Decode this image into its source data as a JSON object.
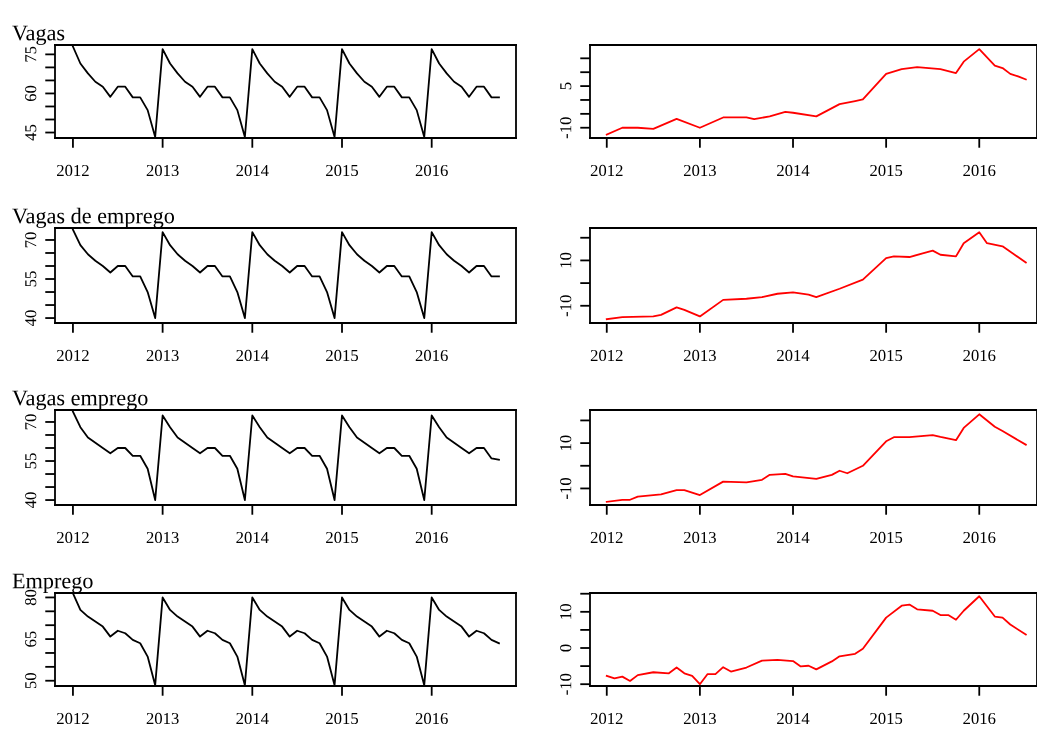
{
  "chart_data": [
    {
      "type": "line",
      "title": "Vagas",
      "xlim": [
        2011.8,
        2016.94
      ],
      "ylim": [
        42.9,
        78.6
      ],
      "xticks": [
        2012,
        2013,
        2014,
        2015,
        2016
      ],
      "yticks": [
        45,
        {
          "value": 50,
          "label": null
        },
        {
          "value": 55,
          "label": null
        },
        60,
        {
          "value": 65,
          "label": null
        },
        {
          "value": 70,
          "label": null
        },
        75
      ],
      "x": [
        2012,
        2012.083,
        2012.167,
        2012.25,
        2012.333,
        2012.417,
        2012.5,
        2012.583,
        2012.667,
        2012.75,
        2012.833,
        2012.917,
        2013,
        2013.083,
        2013.167,
        2013.25,
        2013.333,
        2013.417,
        2013.5,
        2013.583,
        2013.667,
        2013.75,
        2013.833,
        2013.917,
        2014,
        2014.083,
        2014.167,
        2014.25,
        2014.333,
        2014.417,
        2014.5,
        2014.583,
        2014.667,
        2014.75,
        2014.833,
        2014.917,
        2015,
        2015.083,
        2015.167,
        2015.25,
        2015.333,
        2015.417,
        2015.5,
        2015.583,
        2015.667,
        2015.75,
        2015.833,
        2015.917,
        2016,
        2016.083,
        2016.167,
        2016.25,
        2016.333,
        2016.417,
        2016.5,
        2016.583,
        2016.667,
        2016.75
      ],
      "series": [
        {
          "color": "#000000",
          "values": [
            78,
            71.5,
            67.7,
            64.5,
            62.6,
            58.7,
            62.6,
            62.6,
            58.5,
            58.5,
            53.6,
            43.3,
            77,
            71.5,
            67.7,
            64.5,
            62.6,
            58.7,
            62.6,
            62.6,
            58.5,
            58.5,
            53.6,
            43.3,
            77,
            71.5,
            67.7,
            64.5,
            62.6,
            58.7,
            62.6,
            62.6,
            58.5,
            58.5,
            53.6,
            43.3,
            77,
            71.5,
            67.7,
            64.5,
            62.6,
            58.7,
            62.6,
            62.6,
            58.5,
            58.5,
            53.6,
            43.3,
            77,
            71.5,
            67.7,
            64.5,
            62.6,
            58.7,
            62.6,
            62.6,
            58.5,
            58.5
          ]
        }
      ]
    },
    {
      "type": "line",
      "xlim": [
        2011.82,
        2016.62
      ],
      "ylim": [
        -13.7,
        19.8
      ],
      "xticks": [
        2012,
        2013,
        2014,
        2015,
        2016
      ],
      "yticks": [
        -10,
        {
          "value": -5,
          "label": null
        },
        {
          "value": 0,
          "label": null
        },
        5,
        {
          "value": 10,
          "label": null
        },
        {
          "value": 15,
          "label": null
        }
      ],
      "series": [
        {
          "color": "#ff0000",
          "x": [
            2012,
            2012.167,
            2012.333,
            2012.5,
            2012.75,
            2013,
            2013.25,
            2013.5,
            2013.583,
            2013.75,
            2013.917,
            2014,
            2014.25,
            2014.5,
            2014.667,
            2014.75,
            2015,
            2015.167,
            2015.333,
            2015.583,
            2015.75,
            2015.833,
            2016,
            2016.167,
            2016.25,
            2016.333,
            2016.417,
            2016.5
          ],
          "values": [
            -12.5,
            -10,
            -10,
            -10.4,
            -6.8,
            -10,
            -6.3,
            -6.3,
            -6.9,
            -5.9,
            -4.3,
            -4.6,
            -5.9,
            -1.5,
            -0.4,
            0.2,
            9.4,
            11.1,
            11.8,
            11.1,
            9.7,
            13.8,
            18.3,
            12.4,
            11.5,
            9.4,
            8.5,
            7.4
          ]
        }
      ]
    },
    {
      "type": "line",
      "title": "Vagas de emprego",
      "xlim": [
        2011.8,
        2016.94
      ],
      "ylim": [
        38.1,
        74.6
      ],
      "xticks": [
        2012,
        2013,
        2014,
        2015,
        2016
      ],
      "yticks": [
        40,
        {
          "value": 45,
          "label": null
        },
        {
          "value": 50,
          "label": null
        },
        55,
        {
          "value": 60,
          "label": null
        },
        {
          "value": 65,
          "label": null
        },
        70
      ],
      "x": [
        2012,
        2012.083,
        2012.167,
        2012.25,
        2012.333,
        2012.417,
        2012.5,
        2012.583,
        2012.667,
        2012.75,
        2012.833,
        2012.917,
        2013,
        2013.083,
        2013.167,
        2013.25,
        2013.333,
        2013.417,
        2013.5,
        2013.583,
        2013.667,
        2013.75,
        2013.833,
        2013.917,
        2014,
        2014.083,
        2014.167,
        2014.25,
        2014.333,
        2014.417,
        2014.5,
        2014.583,
        2014.667,
        2014.75,
        2014.833,
        2014.917,
        2015,
        2015.083,
        2015.167,
        2015.25,
        2015.333,
        2015.417,
        2015.5,
        2015.583,
        2015.667,
        2015.75,
        2015.833,
        2015.917,
        2016,
        2016.083,
        2016.167,
        2016.25,
        2016.333,
        2016.417,
        2016.5,
        2016.583,
        2016.667,
        2016.75
      ],
      "series": [
        {
          "color": "#000000",
          "values": [
            74,
            68,
            64.5,
            62,
            60,
            57.5,
            60,
            60,
            56,
            56,
            50,
            40,
            73,
            68,
            64.5,
            62,
            60,
            57.5,
            60,
            60,
            56,
            56,
            50,
            40,
            73,
            68,
            64.5,
            62,
            60,
            57.5,
            60,
            60,
            56,
            56,
            50,
            40,
            73,
            68,
            64.5,
            62,
            60,
            57.5,
            60,
            60,
            56,
            56,
            50,
            40,
            73,
            68,
            64.5,
            62,
            60,
            57.5,
            60,
            60,
            56,
            56
          ]
        }
      ]
    },
    {
      "type": "line",
      "xlim": [
        2011.82,
        2016.62
      ],
      "ylim": [
        -17.6,
        24.3
      ],
      "xticks": [
        2012,
        2013,
        2014,
        2015,
        2016
      ],
      "yticks": [
        -10,
        {
          "value": 0,
          "label": null
        },
        10,
        {
          "value": 20,
          "label": null
        }
      ],
      "series": [
        {
          "color": "#ff0000",
          "x": [
            2012,
            2012.167,
            2012.5,
            2012.583,
            2012.75,
            2012.833,
            2013,
            2013.25,
            2013.5,
            2013.667,
            2013.833,
            2014,
            2014.167,
            2014.25,
            2014.5,
            2014.75,
            2015,
            2015.083,
            2015.25,
            2015.5,
            2015.583,
            2015.75,
            2015.833,
            2016,
            2016.083,
            2016.25,
            2016.5
          ],
          "values": [
            -15.9,
            -15,
            -14.7,
            -14,
            -10.7,
            -11.8,
            -14.7,
            -7.4,
            -6.9,
            -6.2,
            -4.7,
            -4.1,
            -5.1,
            -6.2,
            -2.5,
            1.5,
            11,
            11.8,
            11.5,
            14.3,
            12.5,
            11.8,
            17.6,
            22.4,
            17.6,
            16.2,
            9.1
          ]
        }
      ]
    },
    {
      "type": "line",
      "title": "Vagas emprego",
      "xlim": [
        2011.8,
        2016.94
      ],
      "ylim": [
        38.1,
        74.6
      ],
      "xticks": [
        2012,
        2013,
        2014,
        2015,
        2016
      ],
      "yticks": [
        40,
        {
          "value": 45,
          "label": null
        },
        {
          "value": 50,
          "label": null
        },
        55,
        {
          "value": 60,
          "label": null
        },
        {
          "value": 65,
          "label": null
        },
        70
      ],
      "x": [
        2012,
        2012.083,
        2012.167,
        2012.25,
        2012.333,
        2012.417,
        2012.5,
        2012.583,
        2012.667,
        2012.75,
        2012.833,
        2012.917,
        2013,
        2013.083,
        2013.167,
        2013.25,
        2013.333,
        2013.417,
        2013.5,
        2013.583,
        2013.667,
        2013.75,
        2013.833,
        2013.917,
        2014,
        2014.083,
        2014.167,
        2014.25,
        2014.333,
        2014.417,
        2014.5,
        2014.583,
        2014.667,
        2014.75,
        2014.833,
        2014.917,
        2015,
        2015.083,
        2015.167,
        2015.25,
        2015.333,
        2015.417,
        2015.5,
        2015.583,
        2015.667,
        2015.75,
        2015.833,
        2015.917,
        2016,
        2016.083,
        2016.167,
        2016.25,
        2016.333,
        2016.417,
        2016.5,
        2016.583,
        2016.667,
        2016.75
      ],
      "series": [
        {
          "color": "#000000",
          "values": [
            74,
            68,
            64,
            62,
            60,
            58,
            60,
            60,
            57,
            57,
            52,
            40,
            72.5,
            68,
            64,
            62,
            60,
            58,
            60,
            60,
            57,
            57,
            52,
            40,
            72.5,
            68,
            64,
            62,
            60,
            58,
            60,
            60,
            57,
            57,
            52,
            40,
            72.5,
            68,
            64,
            62,
            60,
            58,
            60,
            60,
            57,
            57,
            52,
            40,
            72.5,
            68,
            64,
            62,
            60,
            58,
            60,
            60,
            56,
            55.5
          ]
        }
      ]
    },
    {
      "type": "line",
      "xlim": [
        2011.82,
        2016.62
      ],
      "ylim": [
        -17.3,
        24.6
      ],
      "xticks": [
        2012,
        2013,
        2014,
        2015,
        2016
      ],
      "yticks": [
        -10,
        {
          "value": 0,
          "label": null
        },
        10,
        {
          "value": 20,
          "label": null
        }
      ],
      "series": [
        {
          "color": "#ff0000",
          "x": [
            2012,
            2012.167,
            2012.25,
            2012.333,
            2012.583,
            2012.75,
            2012.833,
            2013,
            2013.25,
            2013.5,
            2013.667,
            2013.75,
            2013.917,
            2014,
            2014.25,
            2014.417,
            2014.5,
            2014.583,
            2014.75,
            2015,
            2015.083,
            2015.25,
            2015.5,
            2015.583,
            2015.75,
            2015.833,
            2016,
            2016.167,
            2016.25,
            2016.5
          ],
          "values": [
            -15.9,
            -15,
            -15,
            -13.6,
            -12.6,
            -10.7,
            -10.7,
            -12.9,
            -7,
            -7.3,
            -6.2,
            -4,
            -3.6,
            -4.7,
            -5.8,
            -4,
            -2.2,
            -3.3,
            0,
            10.8,
            12.6,
            12.6,
            13.5,
            12.7,
            11.3,
            16.7,
            22.7,
            17.2,
            15.3,
            9.3
          ]
        }
      ]
    },
    {
      "type": "line",
      "title": "Emprego",
      "xlim": [
        2011.8,
        2016.94
      ],
      "ylim": [
        48.1,
        81.6
      ],
      "xticks": [
        2012,
        2013,
        2014,
        2015,
        2016
      ],
      "yticks": [
        50,
        {
          "value": 55,
          "label": null
        },
        {
          "value": 60,
          "label": null
        },
        65,
        {
          "value": 70,
          "label": null
        },
        {
          "value": 75,
          "label": null
        },
        80
      ],
      "x": [
        2012,
        2012.083,
        2012.167,
        2012.25,
        2012.333,
        2012.417,
        2012.5,
        2012.583,
        2012.667,
        2012.75,
        2012.833,
        2012.917,
        2013,
        2013.083,
        2013.167,
        2013.25,
        2013.333,
        2013.417,
        2013.5,
        2013.583,
        2013.667,
        2013.75,
        2013.833,
        2013.917,
        2014,
        2014.083,
        2014.167,
        2014.25,
        2014.333,
        2014.417,
        2014.5,
        2014.583,
        2014.667,
        2014.75,
        2014.833,
        2014.917,
        2015,
        2015.083,
        2015.167,
        2015.25,
        2015.333,
        2015.417,
        2015.5,
        2015.583,
        2015.667,
        2015.75,
        2015.833,
        2015.917,
        2016,
        2016.083,
        2016.167,
        2016.25,
        2016.333,
        2016.417,
        2016.5,
        2016.583,
        2016.667,
        2016.75
      ],
      "series": [
        {
          "color": "#000000",
          "values": [
            81.5,
            75.5,
            73.1,
            71.3,
            69.5,
            65.9,
            68,
            67.1,
            64.7,
            63.5,
            58.7,
            48.4,
            80,
            75.5,
            73.1,
            71.3,
            69.5,
            65.9,
            68,
            67.1,
            64.7,
            63.5,
            58.7,
            48.4,
            80,
            75.5,
            73.1,
            71.3,
            69.5,
            65.9,
            68,
            67.1,
            64.7,
            63.5,
            58.7,
            48.4,
            80,
            75.5,
            73.1,
            71.3,
            69.5,
            65.9,
            68,
            67.1,
            64.7,
            63.5,
            58.7,
            48.4,
            80,
            75.5,
            73.1,
            71.3,
            69.5,
            65.9,
            68,
            67.1,
            64.7,
            63.5
          ]
        }
      ]
    },
    {
      "type": "line",
      "xlim": [
        2011.82,
        2016.62
      ],
      "ylim": [
        -10.5,
        15.2
      ],
      "xticks": [
        2012,
        2013,
        2014,
        2015,
        2016
      ],
      "yticks": [
        -10,
        {
          "value": -5,
          "label": null
        },
        0,
        {
          "value": 5,
          "label": null
        },
        10,
        {
          "value": 15,
          "label": null
        }
      ],
      "series": [
        {
          "color": "#ff0000",
          "x": [
            2012,
            2012.083,
            2012.167,
            2012.25,
            2012.333,
            2012.5,
            2012.667,
            2012.75,
            2012.833,
            2012.917,
            2013,
            2013.083,
            2013.167,
            2013.25,
            2013.333,
            2013.5,
            2013.667,
            2013.833,
            2014,
            2014.083,
            2014.167,
            2014.25,
            2014.417,
            2014.5,
            2014.667,
            2014.75,
            2015,
            2015.167,
            2015.25,
            2015.333,
            2015.5,
            2015.583,
            2015.667,
            2015.75,
            2015.833,
            2016,
            2016.167,
            2016.25,
            2016.333,
            2016.5
          ],
          "values": [
            -7.7,
            -8.4,
            -7.9,
            -9.1,
            -7.5,
            -6.7,
            -7,
            -5.4,
            -7,
            -7.7,
            -10,
            -7.2,
            -7.2,
            -5.3,
            -6.5,
            -5.4,
            -3.5,
            -3.3,
            -3.6,
            -5.1,
            -4.9,
            -5.9,
            -3.7,
            -2.3,
            -1.6,
            -0.2,
            8.4,
            11.7,
            12,
            10.7,
            10.3,
            9.1,
            9.1,
            7.8,
            10.3,
            14.3,
            8.7,
            8.4,
            6.5,
            3.7
          ]
        }
      ]
    }
  ]
}
